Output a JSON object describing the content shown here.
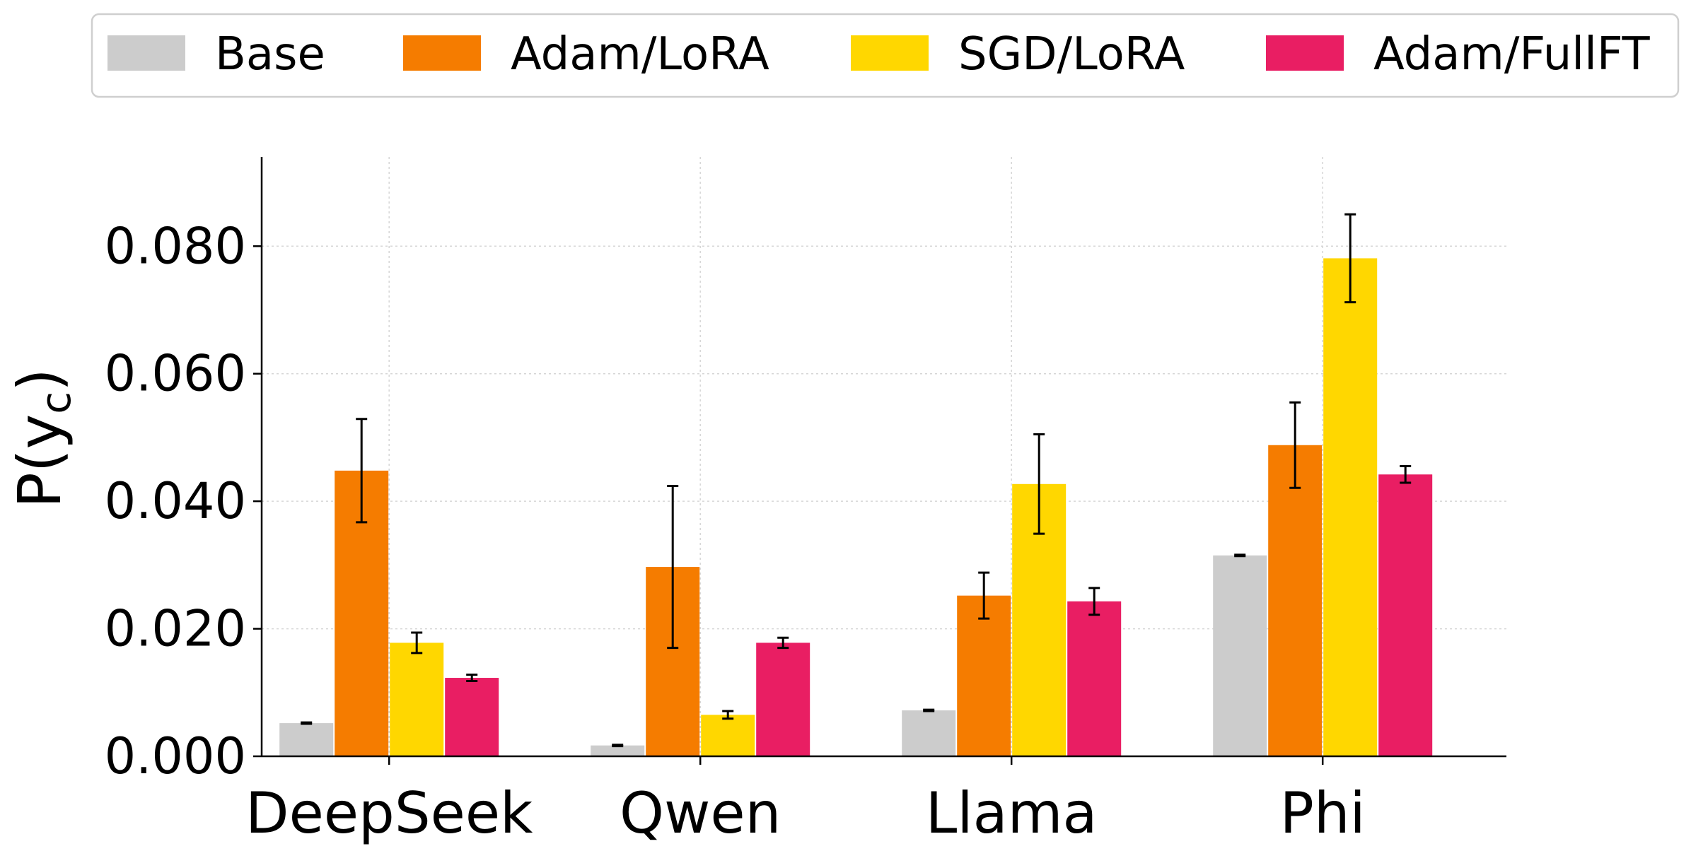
{
  "chart_data": {
    "type": "bar",
    "categories": [
      "DeepSeek",
      "Qwen",
      "Llama",
      "Phi"
    ],
    "series": [
      {
        "name": "Base",
        "color": "#cccccc",
        "values": [
          0.0052,
          0.0017,
          0.0072,
          0.0315
        ],
        "error": [
          0.0001,
          0.0001,
          0.0001,
          0.0001
        ]
      },
      {
        "name": "Adam/LoRA",
        "color": "#f57c00",
        "values": [
          0.0448,
          0.0297,
          0.0252,
          0.0488
        ],
        "error": [
          0.0081,
          0.0127,
          0.0036,
          0.0067
        ]
      },
      {
        "name": "SGD/LoRA",
        "color": "#ffd700",
        "values": [
          0.0178,
          0.0065,
          0.0427,
          0.0781
        ],
        "error": [
          0.0016,
          0.0006,
          0.0078,
          0.0069
        ]
      },
      {
        "name": "Adam/FullFT",
        "color": "#e91e63",
        "values": [
          0.0123,
          0.0178,
          0.0243,
          0.0442
        ],
        "error": [
          0.0005,
          0.0008,
          0.0021,
          0.0013
        ]
      }
    ],
    "ylabel": "P(y",
    "ylabel_sub": "c",
    "ylabel_close": ")",
    "ylim": [
      0,
      0.094
    ],
    "yticks": [
      0.0,
      0.02,
      0.04,
      0.06,
      0.08
    ],
    "ytick_labels": [
      "0.000",
      "0.020",
      "0.040",
      "0.060",
      "0.080"
    ],
    "grid": true,
    "legend_position": "top"
  }
}
